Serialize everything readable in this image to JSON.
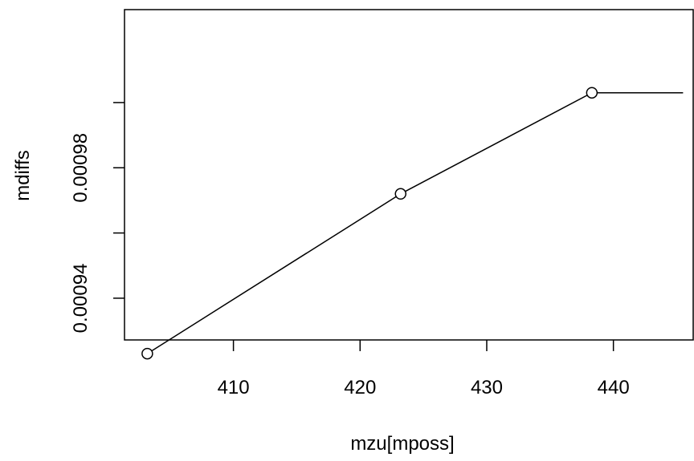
{
  "chart_data": {
    "type": "line",
    "title": "",
    "xlabel": "mzu[mposs]",
    "ylabel": "mdiffs",
    "x_ticks": [
      410,
      420,
      430,
      440
    ],
    "x_tick_labels": [
      "410",
      "420",
      "430",
      "440"
    ],
    "y_ticks": [
      0.00094,
      0.00098
    ],
    "y_tick_labels": [
      "0.00094",
      "0.00098"
    ],
    "y_minor_ticks": [
      0.00096,
      0.001
    ],
    "xlim": [
      401.4,
      446.3
    ],
    "ylim": [
      0.0009272,
      0.0010285
    ],
    "grid": false,
    "series": [
      {
        "points": [
          {
            "x": 403.2,
            "y": 0.000923
          },
          {
            "x": 423.2,
            "y": 0.000972
          },
          {
            "x": 438.3,
            "y": 0.001003
          }
        ],
        "line_extends_to_x": 445.5,
        "line_extends_y": 0.001003,
        "marker": "open-circle",
        "color": "#000000"
      }
    ]
  }
}
